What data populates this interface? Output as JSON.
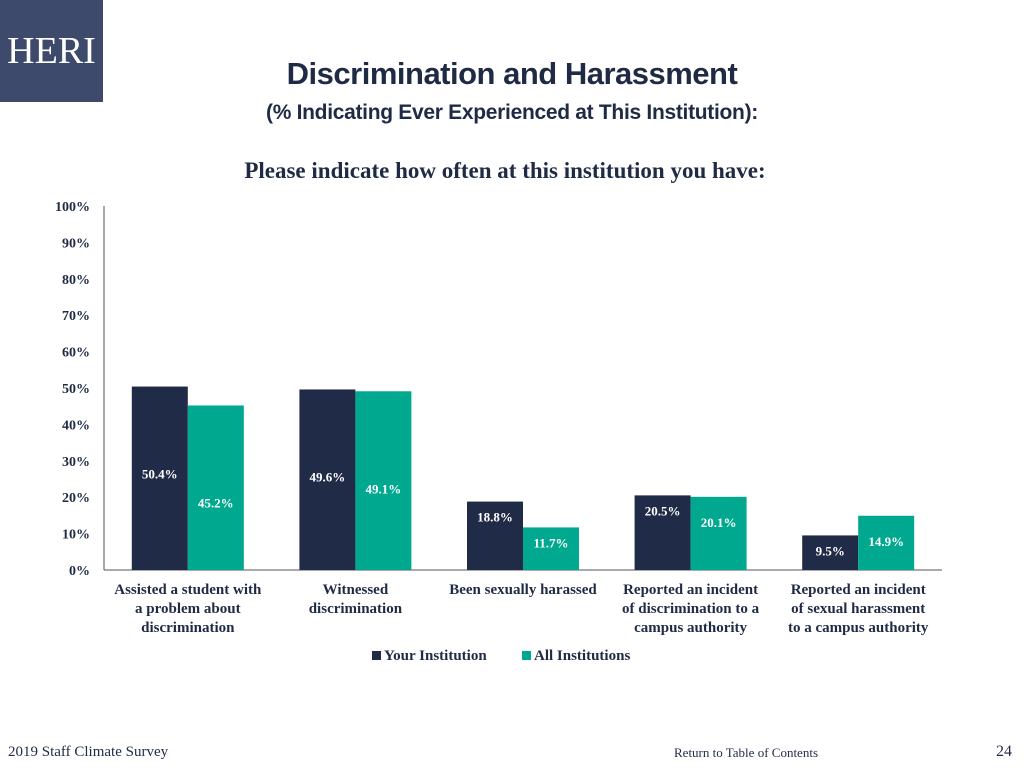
{
  "logo": {
    "text": "HERI"
  },
  "header": {
    "title": "Discrimination and Harassment",
    "subtitle": "(% Indicating  Ever Experienced at This Institution):",
    "question": "Please indicate how often at this institution you have:"
  },
  "footer": {
    "survey": "2019 Staff  Climate Survey",
    "toc_link": "Return to Table of Contents",
    "page": "24"
  },
  "colors": {
    "your_institution": "#202b47",
    "all_institutions": "#00a88f",
    "text": "#1f2a44"
  },
  "chart_data": {
    "type": "bar",
    "categories": [
      [
        "Assisted a student with",
        "a problem about",
        "discrimination"
      ],
      [
        "Witnessed",
        "discrimination"
      ],
      [
        "Been sexually harassed"
      ],
      [
        "Reported an incident",
        "of discrimination to a",
        "campus authority"
      ],
      [
        "Reported an incident",
        "of sexual harassment",
        "to a campus authority"
      ]
    ],
    "series": [
      {
        "name": "Your Institution",
        "values": [
          50.4,
          49.6,
          18.8,
          20.5,
          9.5
        ],
        "labels": [
          "50.4%",
          "49.6%",
          "18.8%",
          "20.5%",
          "9.5%"
        ]
      },
      {
        "name": "All Institutions",
        "values": [
          45.2,
          49.1,
          11.7,
          20.1,
          14.9
        ],
        "labels": [
          "45.2%",
          "49.1%",
          "11.7%",
          "20.1%",
          "14.9%"
        ]
      }
    ],
    "ylim": [
      0,
      100
    ],
    "yticks": [
      "0%",
      "10%",
      "20%",
      "30%",
      "40%",
      "50%",
      "60%",
      "70%",
      "80%",
      "90%",
      "100%"
    ],
    "grid": false,
    "legend": "bottom-center"
  }
}
